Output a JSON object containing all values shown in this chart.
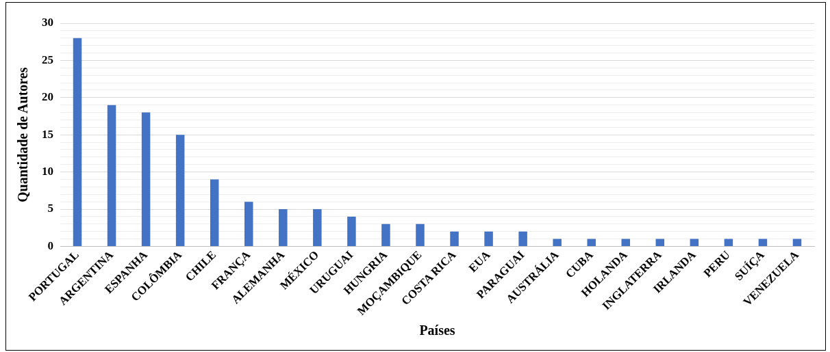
{
  "chart_data": {
    "type": "bar",
    "xlabel": "Países",
    "ylabel": "Quantidade de Autores",
    "categories": [
      "PORTUGAL",
      "ARGENTINA",
      "ESPANHA",
      "COLÔMBIA",
      "CHILE",
      "FRANÇA",
      "ALEMANHA",
      "MÉXICO",
      "URUGUAI",
      "HUNGRIA",
      "MOÇAMBIQUE",
      "COSTA RICA",
      "EUA",
      "PARAGUAI",
      "AUSTRÁLIA",
      "CUBA",
      "HOLANDA",
      "INGLATERRA",
      "IRLANDA",
      "PERU",
      "SUÍÇA",
      "VENEZUELA"
    ],
    "values": [
      28,
      19,
      18,
      15,
      9,
      6,
      5,
      5,
      4,
      3,
      3,
      2,
      2,
      2,
      1,
      1,
      1,
      1,
      1,
      1,
      1,
      1
    ],
    "color": "#4472c4",
    "ylim": [
      0,
      30
    ],
    "yticks": [
      0,
      {
        "value": 1,
        "label": null
      },
      {
        "value": 2,
        "label": null
      },
      {
        "value": 3,
        "label": null
      },
      {
        "value": 4,
        "label": null
      },
      5,
      {
        "value": 6,
        "label": null
      },
      {
        "value": 7,
        "label": null
      },
      {
        "value": 8,
        "label": null
      },
      {
        "value": 9,
        "label": null
      },
      10,
      {
        "value": 11,
        "label": null
      },
      {
        "value": 12,
        "label": null
      },
      {
        "value": 13,
        "label": null
      },
      {
        "value": 14,
        "label": null
      },
      15,
      {
        "value": 16,
        "label": null
      },
      {
        "value": 17,
        "label": null
      },
      {
        "value": 18,
        "label": null
      },
      {
        "value": 19,
        "label": null
      },
      20,
      {
        "value": 21,
        "label": null
      },
      {
        "value": 22,
        "label": null
      },
      {
        "value": 23,
        "label": null
      },
      {
        "value": 24,
        "label": null
      },
      25,
      {
        "value": 26,
        "label": null
      },
      {
        "value": 27,
        "label": null
      },
      {
        "value": 28,
        "label": null
      },
      {
        "value": 29,
        "label": null
      },
      30
    ],
    "grid": "y",
    "legend": false
  }
}
